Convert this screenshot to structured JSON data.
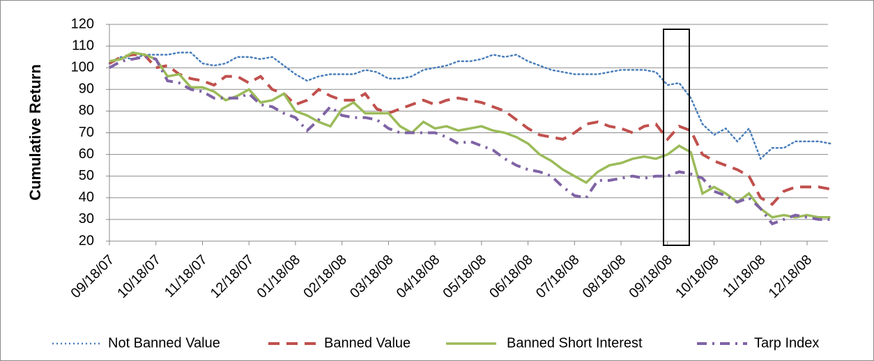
{
  "chart_data": {
    "type": "line",
    "ylabel": "Cumulative Return",
    "categories": [
      "09/18/07",
      null,
      null,
      null,
      "10/18/07",
      null,
      null,
      null,
      "11/18/07",
      null,
      null,
      null,
      "12/18/07",
      null,
      null,
      null,
      "01/18/08",
      null,
      null,
      null,
      "02/18/08",
      null,
      null,
      null,
      "03/18/08",
      null,
      null,
      null,
      "04/18/08",
      null,
      null,
      null,
      "05/18/08",
      null,
      null,
      null,
      "06/18/08",
      null,
      null,
      null,
      "07/18/08",
      null,
      null,
      null,
      "08/18/08",
      null,
      null,
      null,
      "09/18/08",
      null,
      null,
      null,
      "10/18/08",
      null,
      null,
      null,
      "11/18/08",
      null,
      null,
      null,
      "12/18/08",
      null,
      null
    ],
    "ylim": [
      20,
      120
    ],
    "yticks": [
      20,
      30,
      40,
      50,
      60,
      70,
      80,
      90,
      100,
      110,
      120
    ],
    "grid": true,
    "legend": "bottom",
    "series": [
      {
        "name": "Not Banned Value",
        "color": "#4a7ebb",
        "style": "dotted",
        "values": [
          102,
          105,
          104,
          106,
          106,
          106,
          107,
          107,
          102,
          101,
          102,
          105,
          105,
          104,
          105,
          101,
          97,
          94,
          96,
          97,
          97,
          97,
          99,
          98,
          95,
          95,
          96,
          99,
          100,
          101,
          103,
          103,
          104,
          106,
          105,
          106,
          103,
          101,
          99,
          98,
          97,
          97,
          97,
          98,
          99,
          99,
          99,
          98,
          92,
          93,
          86,
          74,
          69,
          72,
          66,
          72,
          58,
          63,
          63,
          66,
          66,
          66,
          65
        ]
      },
      {
        "name": "Banned Value",
        "color": "#c0504d",
        "style": "dashed",
        "values": [
          102,
          105,
          106,
          106,
          100,
          101,
          97,
          95,
          94,
          92,
          96,
          96,
          93,
          96,
          90,
          88,
          83,
          85,
          90,
          87,
          85,
          85,
          88,
          81,
          79,
          81,
          83,
          85,
          83,
          85,
          86,
          85,
          84,
          82,
          80,
          76,
          72,
          69,
          68,
          67,
          70,
          74,
          75,
          73,
          72,
          70,
          73,
          74,
          67,
          73,
          71,
          60,
          57,
          55,
          53,
          50,
          40,
          37,
          43,
          45,
          45,
          45,
          44
        ]
      },
      {
        "name": "Banned Short Interest",
        "color": "#9bbb59",
        "style": "solid",
        "values": [
          103,
          104,
          107,
          106,
          104,
          96,
          97,
          91,
          91,
          89,
          85,
          87,
          90,
          84,
          85,
          88,
          80,
          78,
          75,
          73,
          81,
          84,
          79,
          79,
          79,
          73,
          70,
          75,
          72,
          73,
          71,
          72,
          73,
          71,
          70,
          68,
          65,
          60,
          57,
          53,
          50,
          47,
          52,
          55,
          56,
          58,
          59,
          58,
          60,
          64,
          61,
          42,
          45,
          42,
          38,
          42,
          35,
          31,
          32,
          31,
          32,
          31,
          31
        ]
      },
      {
        "name": "Tarp Index",
        "color": "#7f63a5",
        "style": "dashdot",
        "values": [
          100,
          103,
          104,
          105,
          104,
          94,
          93,
          90,
          89,
          86,
          86,
          86,
          88,
          83,
          82,
          79,
          77,
          71,
          76,
          82,
          78,
          77,
          77,
          76,
          72,
          70,
          70,
          70,
          70,
          68,
          65,
          66,
          64,
          62,
          58,
          55,
          53,
          52,
          50,
          45,
          41,
          40,
          48,
          48,
          49,
          50,
          49,
          50,
          50,
          52,
          51,
          49,
          43,
          41,
          38,
          40,
          35,
          28,
          30,
          32,
          31,
          30,
          30
        ]
      }
    ]
  }
}
